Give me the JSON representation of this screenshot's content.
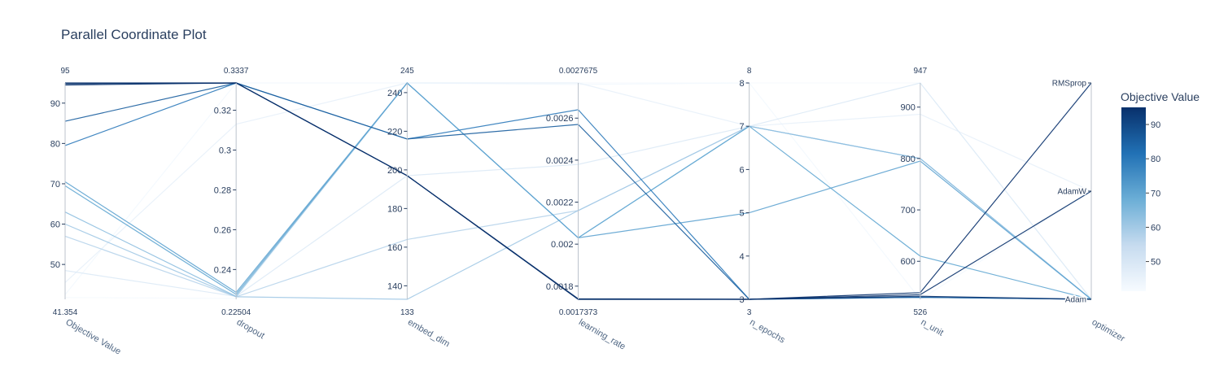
{
  "chart_data": {
    "type": "parallel_coordinates",
    "title": "Parallel Coordinate Plot",
    "colorscale": [
      "#f7fbff",
      "#c6dbef",
      "#6baed6",
      "#2171b5",
      "#08306b"
    ],
    "colorbar": {
      "title": "Objective Value",
      "range": [
        41.354,
        95
      ],
      "ticks": [
        50,
        60,
        70,
        80,
        90
      ]
    },
    "dimensions": [
      {
        "key": "objective",
        "label": "Objective Value",
        "range": [
          41.354,
          95
        ],
        "range_labels": [
          "41.354",
          "95"
        ],
        "ticks": [
          {
            "value": 50,
            "label": "50"
          },
          {
            "value": 60,
            "label": "60"
          },
          {
            "value": 70,
            "label": "70"
          },
          {
            "value": 80,
            "label": "80"
          },
          {
            "value": 90,
            "label": "90"
          }
        ]
      },
      {
        "key": "dropout",
        "label": "dropout",
        "range": [
          0.22504,
          0.3337
        ],
        "range_labels": [
          "0.22504",
          "0.3337"
        ],
        "ticks": [
          {
            "value": 0.24,
            "label": "0.24"
          },
          {
            "value": 0.26,
            "label": "0.26"
          },
          {
            "value": 0.28,
            "label": "0.28"
          },
          {
            "value": 0.3,
            "label": "0.3"
          },
          {
            "value": 0.32,
            "label": "0.32"
          }
        ]
      },
      {
        "key": "embed_dim",
        "label": "embed_dim",
        "range": [
          133,
          245
        ],
        "range_labels": [
          "133",
          "245"
        ],
        "ticks": [
          {
            "value": 140,
            "label": "140"
          },
          {
            "value": 160,
            "label": "160"
          },
          {
            "value": 180,
            "label": "180"
          },
          {
            "value": 200,
            "label": "200"
          },
          {
            "value": 220,
            "label": "220"
          },
          {
            "value": 240,
            "label": "240"
          }
        ]
      },
      {
        "key": "learning_rate",
        "label": "learning_rate",
        "range": [
          0.0017373,
          0.0027675
        ],
        "range_labels": [
          "0.0017373",
          "0.0027675"
        ],
        "ticks": [
          {
            "value": 0.0018,
            "label": "0.0018"
          },
          {
            "value": 0.002,
            "label": "0.002"
          },
          {
            "value": 0.0022,
            "label": "0.0022"
          },
          {
            "value": 0.0024,
            "label": "0.0024"
          },
          {
            "value": 0.0026,
            "label": "0.0026"
          }
        ]
      },
      {
        "key": "n_epochs",
        "label": "n_epochs",
        "range": [
          3,
          8
        ],
        "range_labels": [
          "3",
          "8"
        ],
        "ticks": [
          {
            "value": 3,
            "label": "3"
          },
          {
            "value": 4,
            "label": "4"
          },
          {
            "value": 5,
            "label": "5"
          },
          {
            "value": 6,
            "label": "6"
          },
          {
            "value": 7,
            "label": "7"
          },
          {
            "value": 8,
            "label": "8"
          }
        ]
      },
      {
        "key": "n_unit",
        "label": "n_unit",
        "range": [
          526,
          947
        ],
        "range_labels": [
          "526",
          "947"
        ],
        "ticks": [
          {
            "value": 600,
            "label": "600"
          },
          {
            "value": 700,
            "label": "700"
          },
          {
            "value": 800,
            "label": "800"
          },
          {
            "value": 900,
            "label": "900"
          }
        ]
      },
      {
        "key": "optimizer",
        "label": "optimizer",
        "categorical": true,
        "categories": [
          "Adam",
          "AdamW",
          "RMSprop"
        ],
        "range": [
          0,
          2
        ],
        "range_labels": [],
        "ticks": [
          {
            "value": 0,
            "label": "Adam"
          },
          {
            "value": 1,
            "label": "AdamW"
          },
          {
            "value": 2,
            "label": "RMSprop"
          }
        ]
      }
    ],
    "trials": [
      {
        "objective": 41.8,
        "dropout": 0.2255,
        "embed_dim": 245,
        "learning_rate": 0.0027675,
        "n_epochs": 8,
        "n_unit": 947,
        "optimizer": 0
      },
      {
        "objective": 42.5,
        "dropout": 0.3337,
        "embed_dim": 245,
        "learning_rate": 0.00276,
        "n_epochs": 8,
        "n_unit": 526,
        "optimizer": 1
      },
      {
        "objective": 45.5,
        "dropout": 0.313,
        "embed_dim": 245,
        "learning_rate": 0.0027675,
        "n_epochs": 7,
        "n_unit": 886,
        "optimizer": 1
      },
      {
        "objective": 48.5,
        "dropout": 0.2265,
        "embed_dim": 197,
        "learning_rate": 0.00238,
        "n_epochs": 7,
        "n_unit": 947,
        "optimizer": 0
      },
      {
        "objective": 57,
        "dropout": 0.2263,
        "embed_dim": 164,
        "learning_rate": 0.00216,
        "n_epochs": 7,
        "n_unit": 800,
        "optimizer": 0
      },
      {
        "objective": 60,
        "dropout": 0.2263,
        "embed_dim": 133,
        "learning_rate": 0.00216,
        "n_epochs": 7,
        "n_unit": 800,
        "optimizer": 0
      },
      {
        "objective": 63,
        "dropout": 0.2265,
        "embed_dim": 245,
        "learning_rate": 0.00203,
        "n_epochs": 7,
        "n_unit": 800,
        "optimizer": 0
      },
      {
        "objective": 69.5,
        "dropout": 0.2275,
        "embed_dim": 245,
        "learning_rate": 0.00203,
        "n_epochs": 7,
        "n_unit": 610,
        "optimizer": 0
      },
      {
        "objective": 70.5,
        "dropout": 0.2285,
        "embed_dim": 245,
        "learning_rate": 0.00203,
        "n_epochs": 5,
        "n_unit": 795,
        "optimizer": 0
      },
      {
        "objective": 79.5,
        "dropout": 0.3337,
        "embed_dim": 216,
        "learning_rate": 0.00264,
        "n_epochs": 3,
        "n_unit": 530,
        "optimizer": 0
      },
      {
        "objective": 85.5,
        "dropout": 0.3337,
        "embed_dim": 216,
        "learning_rate": 0.00257,
        "n_epochs": 3,
        "n_unit": 530,
        "optimizer": 0
      },
      {
        "objective": 94.5,
        "dropout": 0.3337,
        "embed_dim": 197,
        "learning_rate": 0.0017373,
        "n_epochs": 3,
        "n_unit": 532,
        "optimizer": 0
      },
      {
        "objective": 94.8,
        "dropout": 0.3337,
        "embed_dim": 197,
        "learning_rate": 0.0017373,
        "n_epochs": 3,
        "n_unit": 535,
        "optimizer": 1
      },
      {
        "objective": 95,
        "dropout": 0.3337,
        "embed_dim": 197,
        "learning_rate": 0.00174,
        "n_epochs": 3,
        "n_unit": 539,
        "optimizer": 2
      }
    ]
  }
}
